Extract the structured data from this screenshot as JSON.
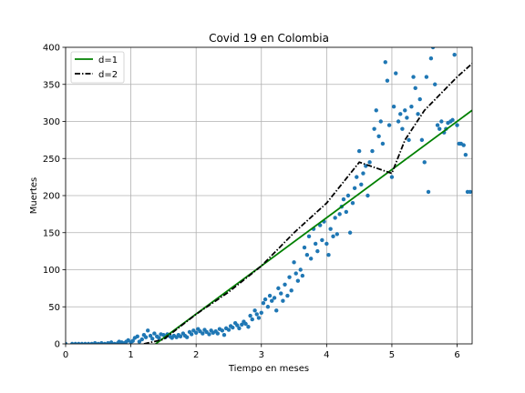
{
  "chart_data": {
    "type": "scatter",
    "title": "Covid 19 en Colombia",
    "xlabel": "Tiempo en meses",
    "ylabel": "Muertes",
    "xlim": [
      0,
      6.23
    ],
    "ylim": [
      0,
      400
    ],
    "xticks": [
      "0",
      "1",
      "2",
      "3",
      "4",
      "5",
      "6"
    ],
    "yticks": [
      "0",
      "50",
      "100",
      "150",
      "200",
      "250",
      "300",
      "350",
      "400"
    ],
    "grid": true,
    "legend_position": "top-left",
    "legend": [
      {
        "label": "d=1",
        "color": "#008000",
        "style": "solid"
      },
      {
        "label": "d=2",
        "color": "#000000",
        "style": "dashdot"
      }
    ],
    "scatter_color": "#1f77b4",
    "points": [
      [
        0.0,
        0
      ],
      [
        0.1,
        0
      ],
      [
        0.15,
        0
      ],
      [
        0.2,
        0
      ],
      [
        0.25,
        0
      ],
      [
        0.3,
        0
      ],
      [
        0.35,
        0
      ],
      [
        0.4,
        0
      ],
      [
        0.45,
        1
      ],
      [
        0.5,
        0
      ],
      [
        0.55,
        1
      ],
      [
        0.6,
        0
      ],
      [
        0.65,
        1
      ],
      [
        0.7,
        2
      ],
      [
        0.75,
        0
      ],
      [
        0.8,
        1
      ],
      [
        0.82,
        3
      ],
      [
        0.86,
        2
      ],
      [
        0.9,
        1
      ],
      [
        0.93,
        3
      ],
      [
        0.96,
        5
      ],
      [
        1.0,
        2
      ],
      [
        1.03,
        4
      ],
      [
        1.06,
        8
      ],
      [
        1.1,
        10
      ],
      [
        1.13,
        3
      ],
      [
        1.17,
        6
      ],
      [
        1.2,
        12
      ],
      [
        1.23,
        9
      ],
      [
        1.26,
        18
      ],
      [
        1.3,
        11
      ],
      [
        1.33,
        7
      ],
      [
        1.36,
        14
      ],
      [
        1.4,
        10
      ],
      [
        1.43,
        8
      ],
      [
        1.46,
        13
      ],
      [
        1.5,
        12
      ],
      [
        1.53,
        9
      ],
      [
        1.56,
        13
      ],
      [
        1.6,
        10
      ],
      [
        1.63,
        8
      ],
      [
        1.66,
        11
      ],
      [
        1.7,
        9
      ],
      [
        1.73,
        12
      ],
      [
        1.76,
        10
      ],
      [
        1.8,
        14
      ],
      [
        1.83,
        11
      ],
      [
        1.86,
        9
      ],
      [
        1.9,
        16
      ],
      [
        1.93,
        13
      ],
      [
        1.96,
        18
      ],
      [
        2.0,
        15
      ],
      [
        2.03,
        20
      ],
      [
        2.06,
        17
      ],
      [
        2.1,
        14
      ],
      [
        2.13,
        19
      ],
      [
        2.16,
        16
      ],
      [
        2.2,
        13
      ],
      [
        2.23,
        18
      ],
      [
        2.26,
        15
      ],
      [
        2.3,
        17
      ],
      [
        2.33,
        14
      ],
      [
        2.36,
        20
      ],
      [
        2.4,
        18
      ],
      [
        2.43,
        12
      ],
      [
        2.46,
        21
      ],
      [
        2.5,
        19
      ],
      [
        2.53,
        24
      ],
      [
        2.56,
        22
      ],
      [
        2.6,
        28
      ],
      [
        2.63,
        25
      ],
      [
        2.66,
        21
      ],
      [
        2.7,
        26
      ],
      [
        2.73,
        30
      ],
      [
        2.76,
        27
      ],
      [
        2.8,
        23
      ],
      [
        2.83,
        38
      ],
      [
        2.86,
        33
      ],
      [
        2.9,
        45
      ],
      [
        2.93,
        40
      ],
      [
        2.96,
        35
      ],
      [
        3.0,
        42
      ],
      [
        3.03,
        55
      ],
      [
        3.06,
        60
      ],
      [
        3.1,
        50
      ],
      [
        3.13,
        65
      ],
      [
        3.16,
        58
      ],
      [
        3.2,
        62
      ],
      [
        3.23,
        45
      ],
      [
        3.26,
        75
      ],
      [
        3.3,
        68
      ],
      [
        3.33,
        58
      ],
      [
        3.36,
        80
      ],
      [
        3.4,
        65
      ],
      [
        3.43,
        90
      ],
      [
        3.46,
        72
      ],
      [
        3.5,
        110
      ],
      [
        3.53,
        95
      ],
      [
        3.56,
        85
      ],
      [
        3.6,
        100
      ],
      [
        3.63,
        92
      ],
      [
        3.66,
        130
      ],
      [
        3.7,
        120
      ],
      [
        3.73,
        145
      ],
      [
        3.76,
        115
      ],
      [
        3.8,
        155
      ],
      [
        3.83,
        135
      ],
      [
        3.86,
        125
      ],
      [
        3.9,
        160
      ],
      [
        3.93,
        140
      ],
      [
        3.96,
        165
      ],
      [
        4.0,
        135
      ],
      [
        4.03,
        120
      ],
      [
        4.06,
        155
      ],
      [
        4.1,
        145
      ],
      [
        4.13,
        170
      ],
      [
        4.16,
        148
      ],
      [
        4.2,
        175
      ],
      [
        4.23,
        185
      ],
      [
        4.26,
        195
      ],
      [
        4.3,
        178
      ],
      [
        4.33,
        200
      ],
      [
        4.36,
        150
      ],
      [
        4.4,
        190
      ],
      [
        4.43,
        210
      ],
      [
        4.46,
        225
      ],
      [
        4.5,
        260
      ],
      [
        4.53,
        215
      ],
      [
        4.56,
        230
      ],
      [
        4.6,
        240
      ],
      [
        4.63,
        200
      ],
      [
        4.66,
        245
      ],
      [
        4.7,
        260
      ],
      [
        4.73,
        290
      ],
      [
        4.76,
        315
      ],
      [
        4.8,
        280
      ],
      [
        4.83,
        300
      ],
      [
        4.86,
        270
      ],
      [
        4.9,
        380
      ],
      [
        4.93,
        355
      ],
      [
        4.96,
        295
      ],
      [
        5.0,
        225
      ],
      [
        5.03,
        320
      ],
      [
        5.06,
        365
      ],
      [
        5.1,
        300
      ],
      [
        5.13,
        310
      ],
      [
        5.16,
        290
      ],
      [
        5.2,
        315
      ],
      [
        5.23,
        305
      ],
      [
        5.26,
        275
      ],
      [
        5.3,
        320
      ],
      [
        5.33,
        360
      ],
      [
        5.36,
        345
      ],
      [
        5.4,
        310
      ],
      [
        5.43,
        330
      ],
      [
        5.46,
        275
      ],
      [
        5.5,
        245
      ],
      [
        5.53,
        360
      ],
      [
        5.56,
        205
      ],
      [
        5.6,
        385
      ],
      [
        5.63,
        400
      ],
      [
        5.66,
        350
      ],
      [
        5.7,
        295
      ],
      [
        5.73,
        290
      ],
      [
        5.76,
        300
      ],
      [
        5.8,
        285
      ],
      [
        5.83,
        290
      ],
      [
        5.86,
        298
      ],
      [
        5.9,
        300
      ],
      [
        5.93,
        302
      ],
      [
        5.96,
        390
      ],
      [
        6.0,
        295
      ],
      [
        6.03,
        270
      ],
      [
        6.06,
        270
      ],
      [
        6.1,
        268
      ],
      [
        6.13,
        255
      ],
      [
        6.16,
        205
      ],
      [
        6.2,
        205
      ]
    ],
    "fit_d1": {
      "x_start": 1.38,
      "x_end": 6.23,
      "y_start": 0,
      "y_end": 315
    },
    "fit_d2": [
      [
        1.2,
        0
      ],
      [
        1.5,
        6
      ],
      [
        2.0,
        40
      ],
      [
        2.5,
        70
      ],
      [
        3.0,
        105
      ],
      [
        3.5,
        150
      ],
      [
        4.0,
        190
      ],
      [
        4.5,
        245
      ],
      [
        5.0,
        230
      ],
      [
        5.2,
        275
      ],
      [
        5.5,
        315
      ],
      [
        6.0,
        360
      ],
      [
        6.23,
        378
      ]
    ]
  }
}
